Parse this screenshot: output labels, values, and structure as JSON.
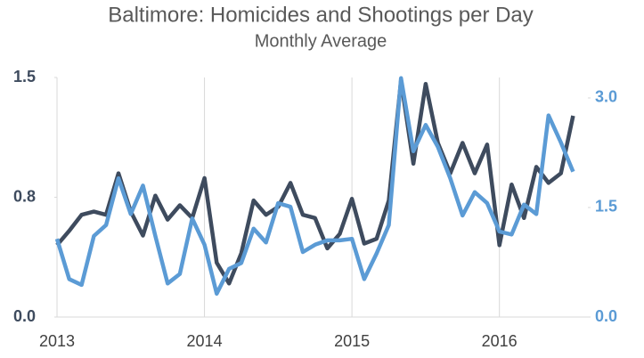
{
  "chart_data": {
    "type": "line",
    "title": "Baltimore: Homicides and Shootings per Day",
    "subtitle": "Monthly Average",
    "x": [
      2013,
      2013.083,
      2013.167,
      2013.25,
      2013.333,
      2013.417,
      2013.5,
      2013.583,
      2013.667,
      2013.75,
      2013.833,
      2013.917,
      2014,
      2014.083,
      2014.167,
      2014.25,
      2014.333,
      2014.417,
      2014.5,
      2014.583,
      2014.667,
      2014.75,
      2014.833,
      2014.917,
      2015,
      2015.083,
      2015.167,
      2015.25,
      2015.333,
      2015.417,
      2015.5,
      2015.583,
      2015.667,
      2015.75,
      2015.833,
      2015.917,
      2016,
      2016.083,
      2016.167,
      2016.25,
      2016.333,
      2016.417,
      2016.5
    ],
    "xlim": [
      2013,
      2016.6
    ],
    "xticks": [
      2013,
      2014,
      2015,
      2016
    ],
    "ylim": [
      0,
      1.5
    ],
    "yticks": [
      {
        "value": 0,
        "label": "0.0"
      },
      {
        "value": 0.75,
        "label": "0.8"
      },
      1.5
    ],
    "y2lim": [
      0,
      3.28
    ],
    "y2ticks": [
      {
        "value": 0,
        "label": "0.0"
      },
      1.5,
      {
        "value": 3,
        "label": "3.0"
      }
    ],
    "grid": "x",
    "series": [
      {
        "color": "#3e4b5e",
        "axis": "y",
        "values": [
          0.45,
          0.54,
          0.64,
          0.66,
          0.64,
          0.9,
          0.66,
          0.51,
          0.76,
          0.61,
          0.7,
          0.62,
          0.87,
          0.34,
          0.21,
          0.4,
          0.73,
          0.64,
          0.69,
          0.84,
          0.64,
          0.62,
          0.43,
          0.52,
          0.74,
          0.46,
          0.49,
          0.73,
          1.48,
          0.96,
          1.46,
          1.09,
          0.9,
          1.09,
          0.9,
          1.08,
          0.45,
          0.83,
          0.62,
          0.94,
          0.84,
          0.9,
          1.26
        ]
      },
      {
        "color": "#5b9bd5",
        "axis": "y2",
        "values": [
          1.07,
          0.52,
          0.44,
          1.11,
          1.26,
          1.9,
          1.41,
          1.8,
          1.11,
          0.46,
          0.59,
          1.35,
          0.99,
          0.32,
          0.66,
          0.74,
          1.21,
          1.02,
          1.56,
          1.51,
          0.89,
          0.99,
          1.05,
          1.05,
          1.07,
          0.52,
          0.87,
          1.26,
          3.27,
          2.27,
          2.63,
          2.33,
          1.9,
          1.39,
          1.71,
          1.56,
          1.17,
          1.13,
          1.54,
          1.41,
          2.76,
          2.39,
          1.99
        ]
      }
    ]
  }
}
